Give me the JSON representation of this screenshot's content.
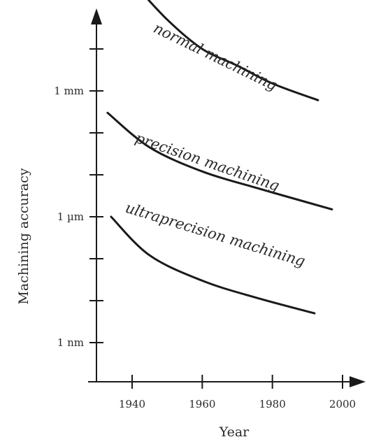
{
  "chart_data": {
    "type": "line",
    "title": "",
    "xlabel": "Year",
    "ylabel": "Machining accuracy",
    "y_scale": "log",
    "xlim": [
      1930,
      2005
    ],
    "x_ticks": [
      1940,
      1960,
      1980,
      2000
    ],
    "y_ticks": [
      {
        "value": 0.001,
        "label": "1 mm"
      },
      {
        "value": 1e-06,
        "label": "1 µm"
      },
      {
        "value": 1e-09,
        "label": "1 nm"
      }
    ],
    "series": [
      {
        "name": "normal machining",
        "color": "#1a1a1a",
        "x": [
          1940,
          1950,
          1960,
          1970,
          1980,
          1993
        ],
        "y": [
          0.4,
          0.05,
          0.01,
          0.004,
          0.0015,
          0.0006
        ]
      },
      {
        "name": "precision machining",
        "color": "#1a1a1a",
        "x": [
          1933,
          1945,
          1960,
          1975,
          1990,
          1997
        ],
        "y": [
          0.0003,
          4.5e-05,
          1.2e-05,
          5e-06,
          2.2e-06,
          1.5e-06
        ]
      },
      {
        "name": "ultraprecision machining",
        "color": "#1a1a1a",
        "x": [
          1934,
          1945,
          1960,
          1975,
          1992
        ],
        "y": [
          1e-06,
          1.2e-07,
          3e-08,
          1.2e-08,
          5e-09
        ]
      }
    ]
  }
}
